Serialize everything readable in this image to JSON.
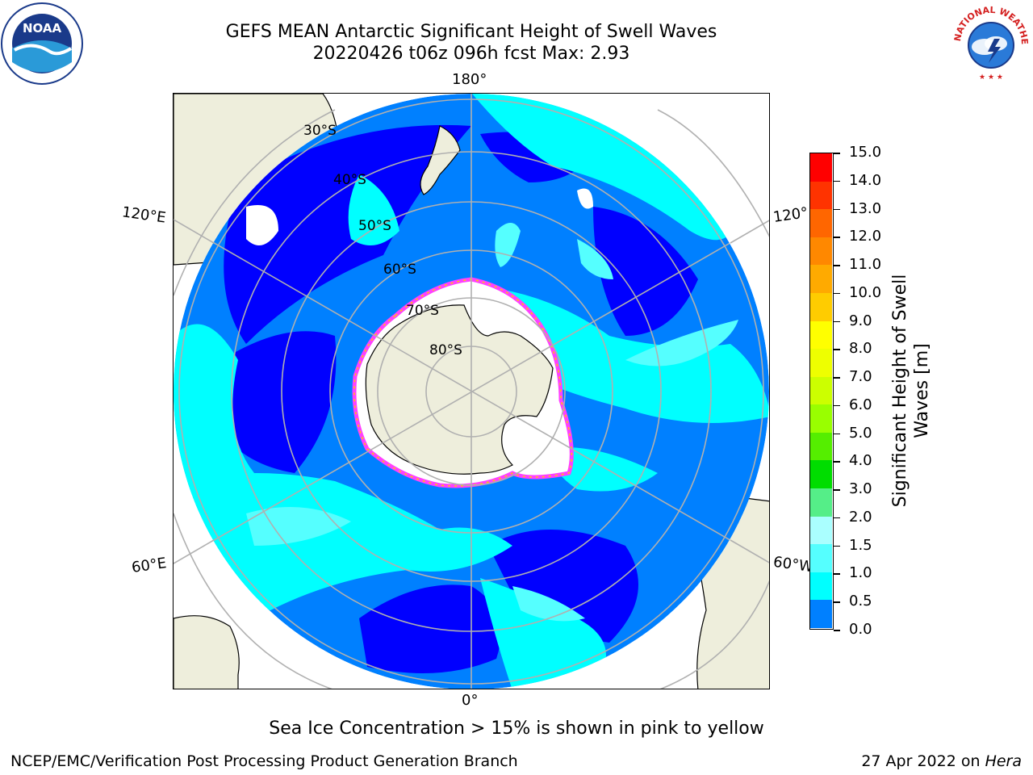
{
  "title": {
    "line1": "GEFS MEAN Antarctic Significant Height of Swell Waves",
    "line2": "20220426 t06z 096h fcst   Max: 2.93"
  },
  "logos": {
    "left": {
      "name": "noaa-logo",
      "text": "NOAA",
      "ring_text": "NATIONAL OCEANIC AND ATMOSPHERIC ADMINISTRATION · U.S. DEPARTMENT OF COMMERCE"
    },
    "right": {
      "name": "nws-logo",
      "ring_text": "NATIONAL WEATHER SERVICE"
    }
  },
  "map": {
    "projection": "south polar stereographic",
    "longitude_labels": {
      "top": "180°",
      "bottom": "0°",
      "upper_left": "120°E",
      "lower_left": "60°E",
      "upper_right": "120°",
      "lower_right": "60°W"
    },
    "latitude_labels": [
      "30°S",
      "40°S",
      "50°S",
      "60°S",
      "70°S",
      "80°S"
    ],
    "colors": {
      "land": "#eeeedc",
      "ocean_0_05": "#0000ff",
      "ocean_05_1": "#0080ff",
      "ocean_1_15": "#00ffff",
      "ocean_15_2": "#40ffff",
      "ice": "#ffffff",
      "ice_edge": "#ff40ff",
      "grid": "#b0b0b0"
    }
  },
  "colorbar": {
    "label": "Significant Height of Swell Waves [m]",
    "label_line1": "Significant Height of Swell",
    "label_line2": "Waves [m]",
    "ticks": [
      "15.0",
      "14.0",
      "13.0",
      "12.0",
      "11.0",
      "10.0",
      "9.0",
      "8.0",
      "7.0",
      "6.0",
      "5.0",
      "4.0",
      "3.0",
      "2.0",
      "1.5",
      "1.0",
      "0.5",
      "0.0"
    ],
    "colors": [
      "#ff0000",
      "#ff3300",
      "#ff6600",
      "#ff8800",
      "#ffaa00",
      "#ffcc00",
      "#ffff00",
      "#eeff00",
      "#ccff00",
      "#99ff00",
      "#55ee00",
      "#00dd00",
      "#55ee88",
      "#aaffff",
      "#55ffff",
      "#00ffff",
      "#0080ff",
      "#0000ff"
    ]
  },
  "note": "Sea Ice Concentration > 15% is shown in pink to yellow",
  "footer": {
    "left": "NCEP/EMC/Verification Post Processing Product Generation Branch",
    "right_prefix": "27 Apr 2022 on ",
    "right_machine": "Hera"
  }
}
